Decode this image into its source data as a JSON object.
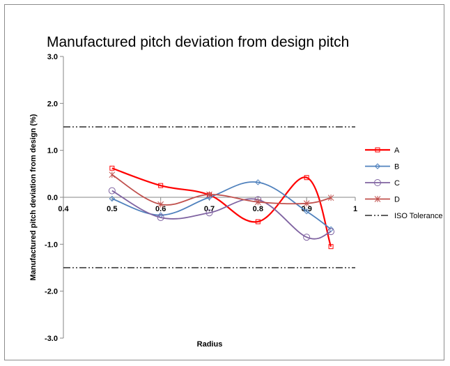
{
  "chart_data": {
    "type": "line",
    "title": "Manufactured pitch deviation from design pitch",
    "xlabel": "Radius",
    "ylabel": "Manufactured pitch deviation from design (%)",
    "xlim": [
      0.4,
      1.0
    ],
    "ylim": [
      -3.0,
      3.0
    ],
    "x_ticks": [
      "0.4",
      "0.5",
      "0.6",
      "0.7",
      "0.8",
      "0.9",
      "1"
    ],
    "y_ticks": [
      "3.0",
      "2.0",
      "1.0",
      "0.0",
      "-1.0",
      "-2.0",
      "-3.0"
    ],
    "x": [
      0.5,
      0.6,
      0.7,
      0.8,
      0.9,
      0.95
    ],
    "series": [
      {
        "name": "A",
        "values": [
          0.62,
          0.25,
          0.05,
          -0.52,
          0.42,
          -1.05
        ],
        "color": "#ff0000",
        "marker": "square"
      },
      {
        "name": "B",
        "values": [
          -0.03,
          -0.38,
          0.0,
          0.32,
          -0.3,
          -0.68
        ],
        "color": "#4f81bd",
        "marker": "diamond"
      },
      {
        "name": "C",
        "values": [
          0.14,
          -0.43,
          -0.33,
          -0.05,
          -0.85,
          -0.73
        ],
        "color": "#7f63a1",
        "marker": "circle"
      },
      {
        "name": "D",
        "values": [
          0.48,
          -0.15,
          0.06,
          -0.1,
          -0.13,
          -0.01
        ],
        "color": "#c0504d",
        "marker": "star"
      }
    ],
    "reference_lines": [
      {
        "name": "ISO Tolerance",
        "values": [
          1.5,
          -1.5
        ],
        "color": "#000000",
        "style": "dash-dot-dot"
      }
    ],
    "legend": "right",
    "grid": false
  }
}
